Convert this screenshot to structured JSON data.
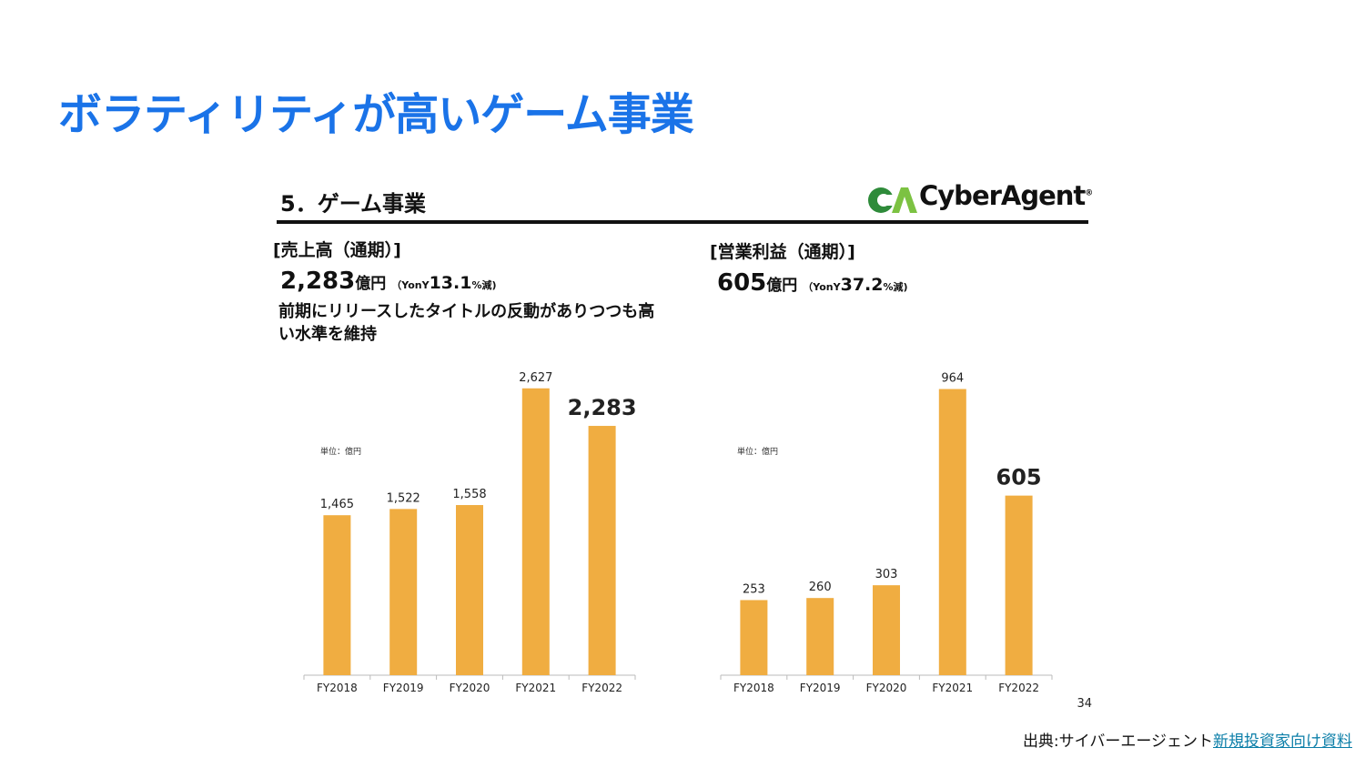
{
  "slide": {
    "title": "ボラティリティが高いゲーム事業",
    "page_number": "34",
    "source_prefix": "出典:サイバーエージェント",
    "source_link": "新規投資家向け資料"
  },
  "section": {
    "title": "5．ゲーム事業",
    "logo_text": "CyberAgent",
    "logo_registered": "®"
  },
  "colors": {
    "title_blue": "#1a73e8",
    "bar": "#f0ad41",
    "logo_green_dark": "#2e8b3a",
    "logo_green_light": "#7cc242"
  },
  "revenue": {
    "title": "[売上高（通期）]",
    "amount": "2,283",
    "unit": "億円",
    "yoy_prefix": "（YonY",
    "yoy_value": "13.1",
    "yoy_suffix": "%減)",
    "description": "前期にリリースしたタイトルの反動がありつつも高い水準を維持"
  },
  "profit": {
    "title": "[営業利益（通期）]",
    "amount": "605",
    "unit": "億円",
    "yoy_prefix": "（YonY",
    "yoy_value": "37.2",
    "yoy_suffix": "%減)"
  },
  "chart_data": [
    {
      "type": "bar",
      "title": "売上高（通期）",
      "unit_label": "単位：億円",
      "categories": [
        "FY2018",
        "FY2019",
        "FY2020",
        "FY2021",
        "FY2022"
      ],
      "values": [
        1465,
        1522,
        1558,
        2627,
        2283
      ],
      "value_labels": [
        "1,465",
        "1,522",
        "1,558",
        "2,627",
        "2,283"
      ],
      "highlight_index": 4,
      "ylim": [
        0,
        2800
      ],
      "grid": false
    },
    {
      "type": "bar",
      "title": "営業利益（通期）",
      "unit_label": "単位：億円",
      "categories": [
        "FY2018",
        "FY2019",
        "FY2020",
        "FY2021",
        "FY2022"
      ],
      "values": [
        253,
        260,
        303,
        964,
        605
      ],
      "value_labels": [
        "253",
        "260",
        "303",
        "964",
        "605"
      ],
      "highlight_index": 4,
      "ylim": [
        0,
        1030
      ],
      "grid": false
    }
  ]
}
